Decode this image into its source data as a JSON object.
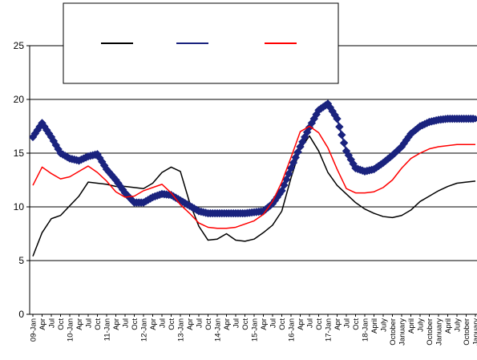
{
  "chart_data": {
    "type": "line",
    "title": "",
    "xlabel": "",
    "ylabel": "",
    "ylim": [
      0,
      25
    ],
    "yticks": [
      0,
      5,
      10,
      15,
      20,
      25
    ],
    "grid": "horizontal",
    "legend_position": "top-left",
    "x_tick_labels": [
      "09-Jan",
      "Apr",
      "Jul",
      "Oct",
      "10-Jan",
      "Apr",
      "Jul",
      "Oct",
      "11-Jan",
      "Apr",
      "Jul",
      "Oct",
      "12-Jan",
      "Apr",
      "Jul",
      "Oct",
      "13-Jan",
      "Apr",
      "Jul",
      "Oct",
      "14-Jan",
      "Apr",
      "Jul",
      "Oct",
      "15-Jan",
      "Apr",
      "Jul",
      "Oct",
      "16-Jan",
      "Apr",
      "Jul",
      "Oct",
      "17-Jan",
      "Apr",
      "Jul",
      "Oct",
      "18-Jan",
      "April",
      "July",
      "October",
      "January",
      "April",
      "July",
      "October",
      "January",
      "April",
      "July",
      "October",
      "January"
    ],
    "x_dates": [
      "2009-01",
      "2009-04",
      "2009-07",
      "2009-10",
      "2010-01",
      "2010-04",
      "2010-07",
      "2010-10",
      "2011-01",
      "2011-04",
      "2011-07",
      "2011-10",
      "2012-01",
      "2012-04",
      "2012-07",
      "2012-10",
      "2013-01",
      "2013-04",
      "2013-07",
      "2013-10",
      "2014-01",
      "2014-04",
      "2014-07",
      "2014-10",
      "2015-01",
      "2015-04",
      "2015-07",
      "2015-10",
      "2016-01",
      "2016-04",
      "2016-07",
      "2016-10",
      "2017-01",
      "2017-04",
      "2017-07",
      "2017-10",
      "2018-01",
      "2018-04",
      "2018-07",
      "2018-10",
      "2019-01",
      "2019-04",
      "2019-07",
      "2019-10",
      "2020-01",
      "2020-04",
      "2020-07",
      "2020-10",
      "2021-01"
    ],
    "series": [
      {
        "name": "",
        "color": "#000000",
        "marker": "none",
        "values": [
          5.4,
          7.6,
          8.9,
          9.2,
          10.1,
          11.0,
          12.3,
          12.2,
          12.1,
          11.9,
          11.9,
          11.8,
          11.7,
          12.2,
          13.2,
          13.7,
          13.3,
          10.4,
          8.2,
          6.9,
          7.0,
          7.5,
          6.9,
          6.8,
          7.0,
          7.6,
          8.3,
          9.6,
          12.7,
          15.4,
          16.6,
          15.2,
          13.2,
          12.0,
          11.2,
          10.4,
          9.8,
          9.4,
          9.1,
          9.0,
          9.2,
          9.7,
          10.5,
          11.0,
          11.5,
          11.9,
          12.2,
          12.3,
          12.4
        ]
      },
      {
        "name": "",
        "color": "#1a237e",
        "marker": "diamond",
        "values": [
          16.5,
          17.8,
          16.5,
          15.0,
          14.5,
          14.3,
          14.7,
          14.9,
          13.5,
          12.5,
          11.3,
          10.4,
          10.4,
          10.9,
          11.2,
          11.1,
          10.6,
          10.1,
          9.6,
          9.4,
          9.4,
          9.4,
          9.4,
          9.4,
          9.5,
          9.6,
          10.3,
          11.5,
          13.6,
          15.6,
          17.4,
          19.0,
          19.6,
          18.2,
          15.2,
          13.6,
          13.3,
          13.5,
          14.1,
          14.8,
          15.6,
          16.8,
          17.5,
          17.9,
          18.1,
          18.2,
          18.2,
          18.2,
          18.2
        ]
      },
      {
        "name": "",
        "color": "#ff0000",
        "marker": "none",
        "values": [
          12.0,
          13.7,
          13.1,
          12.6,
          12.8,
          13.3,
          13.8,
          13.2,
          12.4,
          11.4,
          10.9,
          11.0,
          11.5,
          11.8,
          12.1,
          11.3,
          10.2,
          9.4,
          8.5,
          8.1,
          8.0,
          8.0,
          8.1,
          8.4,
          8.7,
          9.3,
          10.5,
          12.3,
          14.6,
          17.0,
          17.5,
          16.9,
          15.5,
          13.5,
          11.7,
          11.3,
          11.3,
          11.4,
          11.8,
          12.5,
          13.6,
          14.5,
          15.0,
          15.4,
          15.6,
          15.7,
          15.8,
          15.8,
          15.8
        ]
      }
    ]
  }
}
